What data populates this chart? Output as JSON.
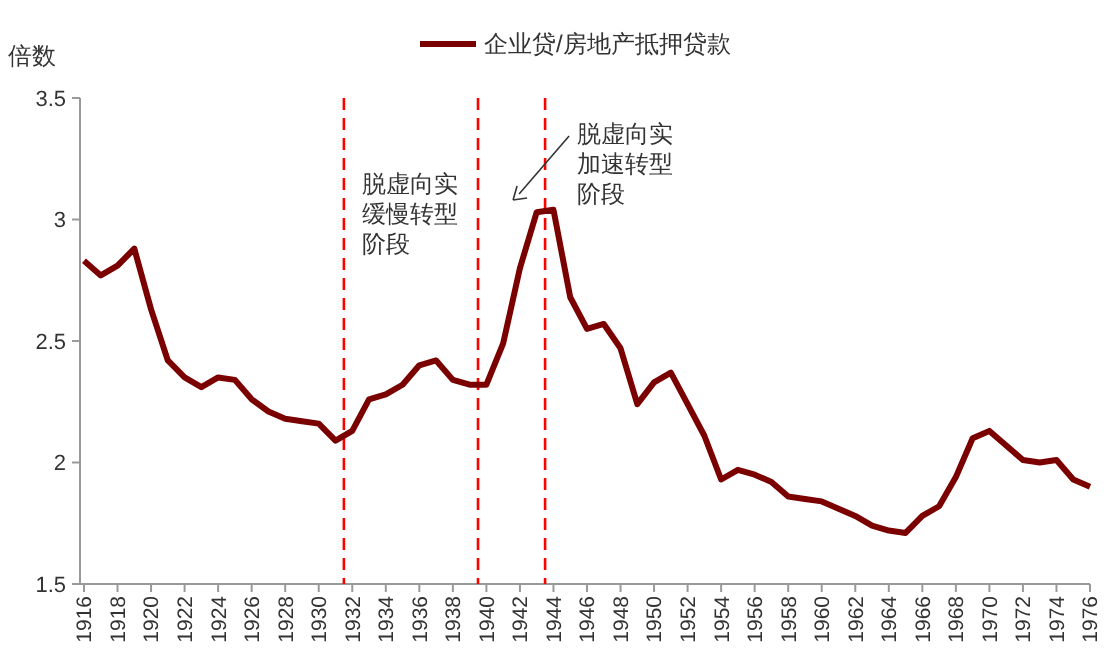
{
  "chart_data": {
    "type": "line",
    "ylabel": "倍数",
    "x": [
      1916,
      1917,
      1918,
      1919,
      1920,
      1921,
      1922,
      1923,
      1924,
      1925,
      1926,
      1927,
      1928,
      1929,
      1930,
      1931,
      1932,
      1933,
      1934,
      1935,
      1936,
      1937,
      1938,
      1939,
      1940,
      1941,
      1942,
      1943,
      1944,
      1945,
      1946,
      1947,
      1948,
      1949,
      1950,
      1951,
      1952,
      1953,
      1954,
      1955,
      1956,
      1957,
      1958,
      1959,
      1960,
      1961,
      1962,
      1963,
      1964,
      1965,
      1966,
      1967,
      1968,
      1969,
      1970,
      1971,
      1972,
      1973,
      1974,
      1975,
      1976
    ],
    "series": [
      {
        "name": "企业贷/房地产抵押贷款",
        "color": "#7b0000",
        "values": [
          2.83,
          2.77,
          2.81,
          2.88,
          2.63,
          2.42,
          2.35,
          2.31,
          2.35,
          2.34,
          2.26,
          2.21,
          2.18,
          2.17,
          2.16,
          2.09,
          2.13,
          2.26,
          2.28,
          2.32,
          2.4,
          2.42,
          2.34,
          2.32,
          2.32,
          2.49,
          2.8,
          3.03,
          3.04,
          2.68,
          2.55,
          2.57,
          2.47,
          2.24,
          2.33,
          2.37,
          2.24,
          2.11,
          1.93,
          1.97,
          1.95,
          1.92,
          1.86,
          1.85,
          1.84,
          1.81,
          1.78,
          1.74,
          1.72,
          1.71,
          1.78,
          1.82,
          1.94,
          2.1,
          2.13,
          2.07,
          2.01,
          2.0,
          2.01,
          1.93,
          1.9
        ]
      }
    ],
    "xlim": [
      1916,
      1976
    ],
    "xticks": [
      1916,
      1918,
      1920,
      1922,
      1924,
      1926,
      1928,
      1930,
      1932,
      1934,
      1936,
      1938,
      1940,
      1942,
      1944,
      1946,
      1948,
      1950,
      1952,
      1954,
      1956,
      1958,
      1960,
      1962,
      1964,
      1966,
      1968,
      1970,
      1972,
      1974,
      1976
    ],
    "ylim": [
      1.5,
      3.5
    ],
    "yticks": [
      1.5,
      2,
      2.5,
      3,
      3.5
    ],
    "ref_lines": [
      {
        "axis": "x",
        "value": 1931.5,
        "color": "#ff0000",
        "line_style": "dashed"
      },
      {
        "axis": "x",
        "value": 1939.5,
        "color": "#ff0000",
        "line_style": "dashed"
      },
      {
        "axis": "x",
        "value": 1943.5,
        "color": "#ff0000",
        "line_style": "dashed"
      }
    ],
    "annotations": [
      "脱虚向实缓慢转型阶段",
      "脱虚向实加速转型阶段"
    ],
    "legend": "top",
    "grid": false,
    "marker": "none",
    "line_style": "solid"
  }
}
